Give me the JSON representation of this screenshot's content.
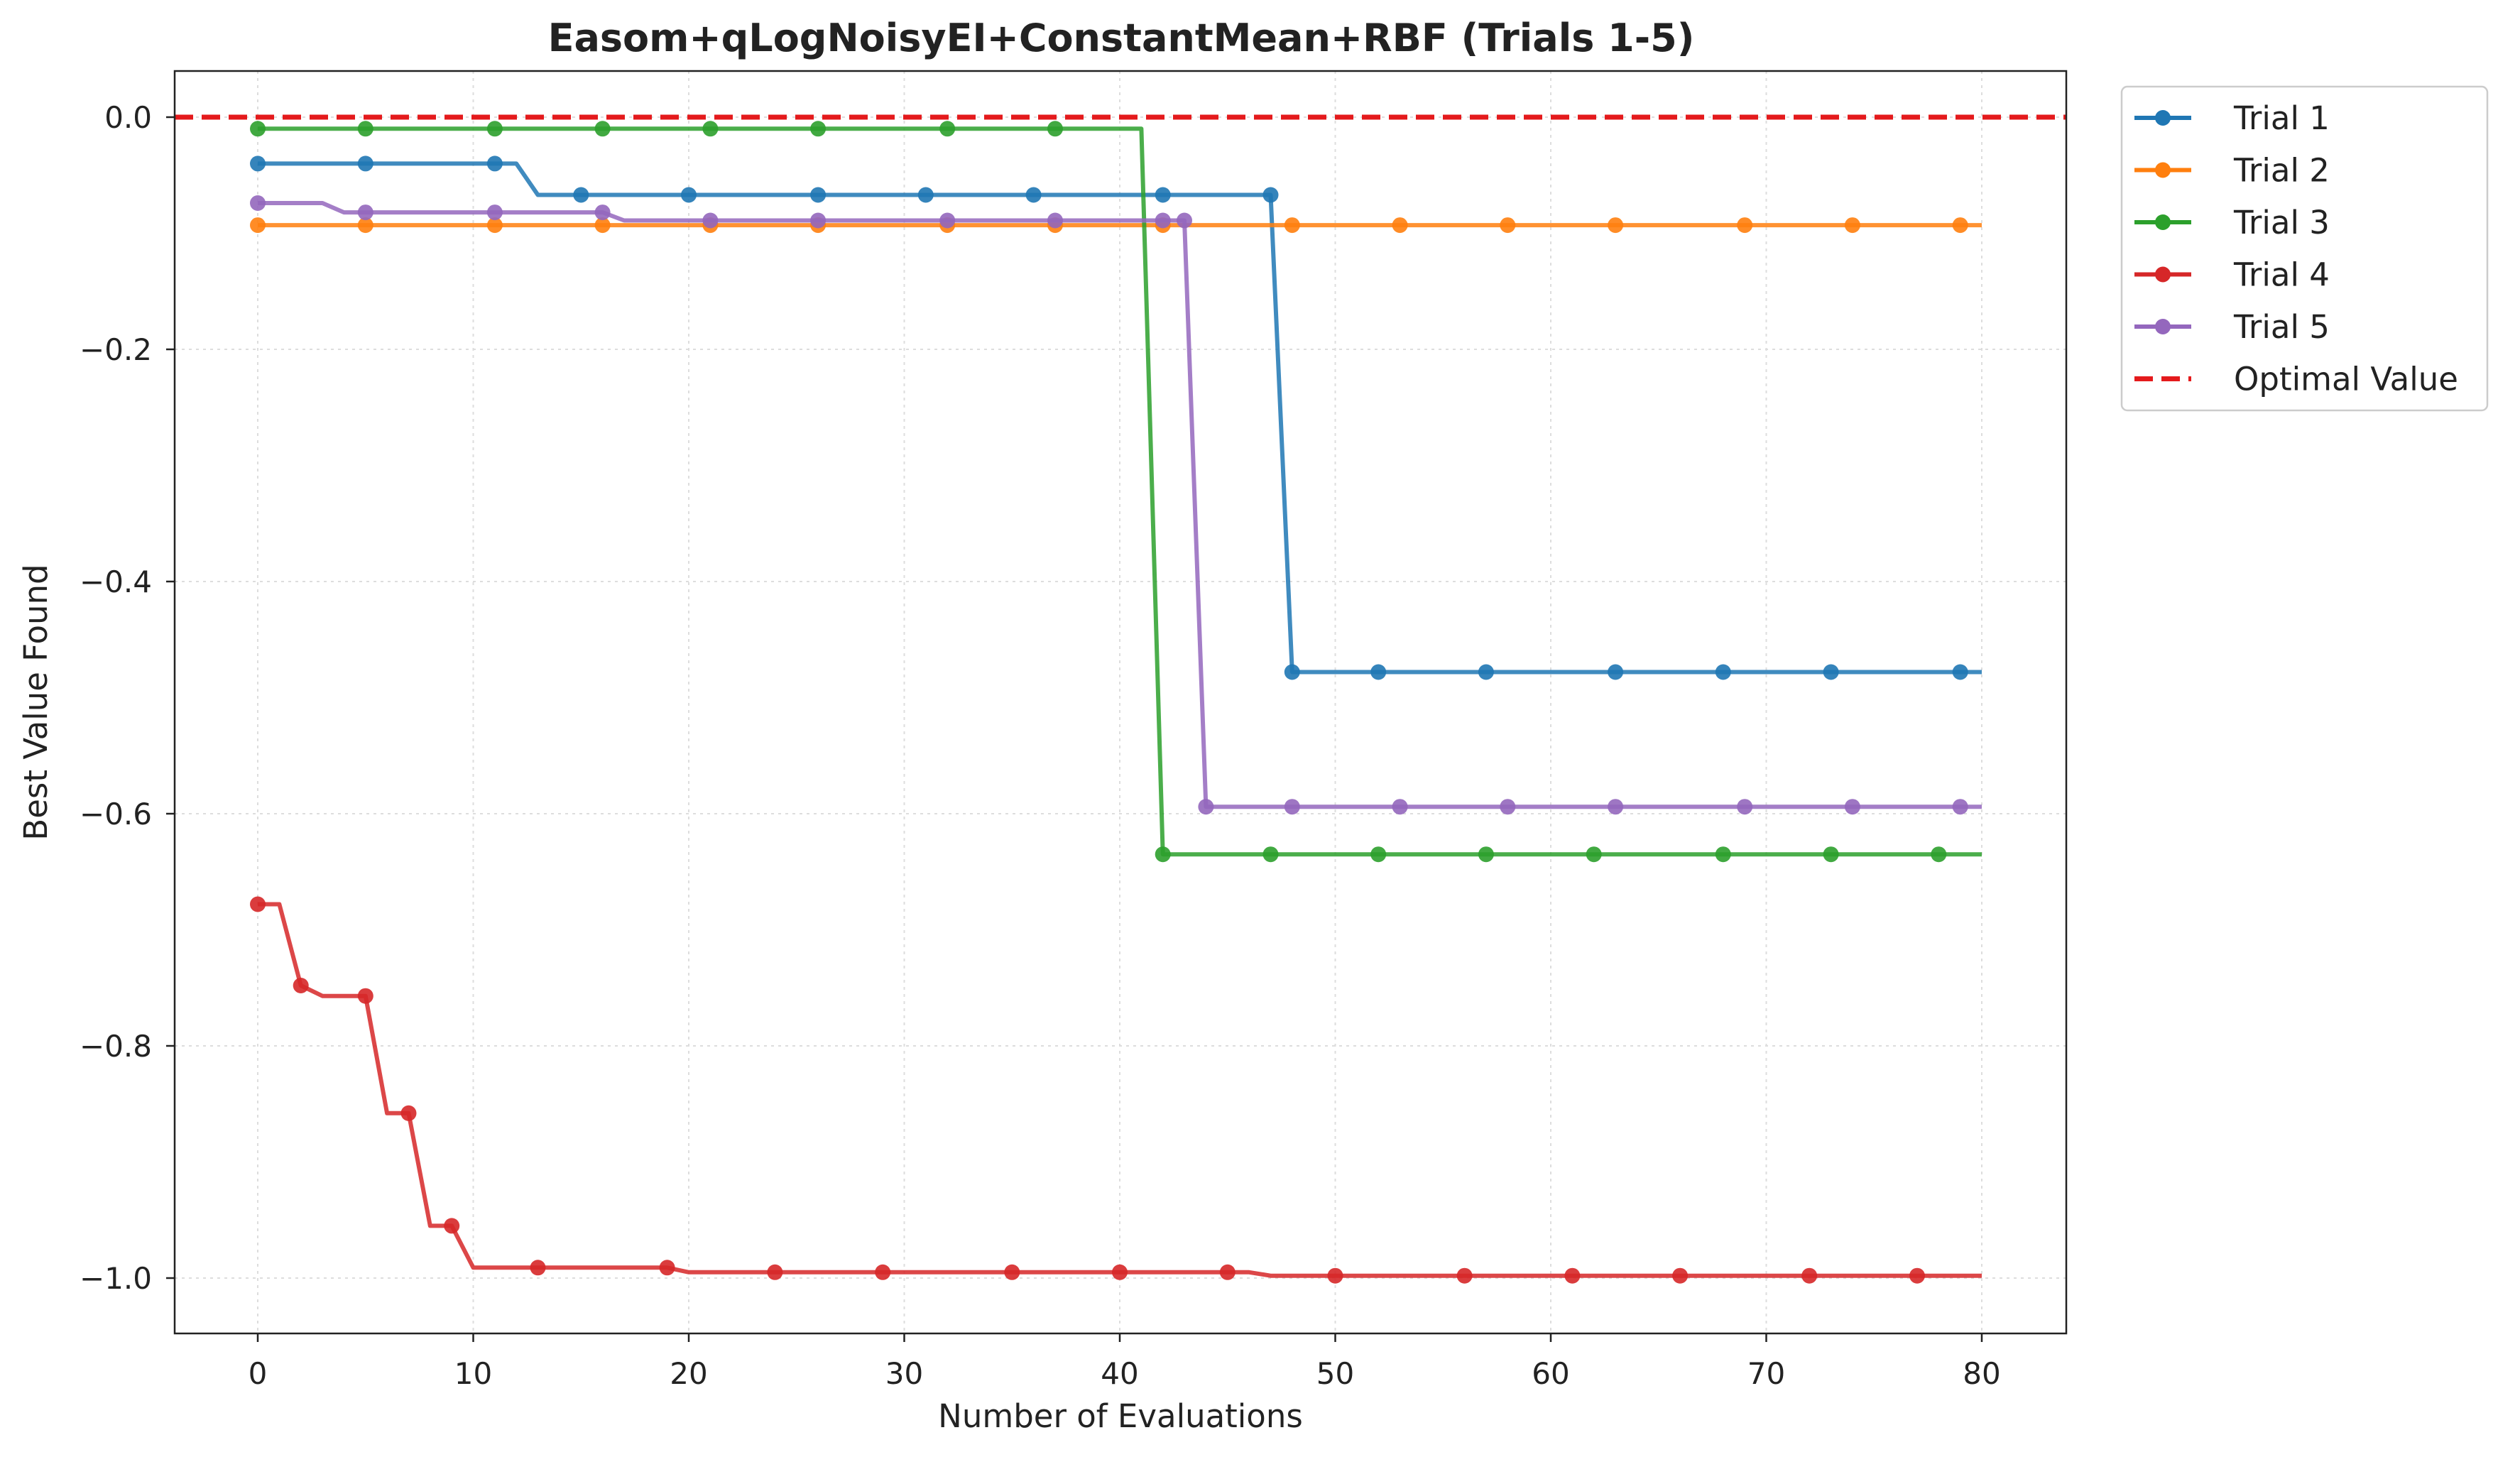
{
  "chart_data": {
    "type": "line",
    "title": "Easom+qLogNoisyEI+ConstantMean+RBF (Trials 1-5)",
    "xlabel": "Number of Evaluations",
    "ylabel": "Best Value Found",
    "xlim": [
      -4,
      84
    ],
    "ylim": [
      -1.05,
      0.04
    ],
    "xticks": [
      0,
      10,
      20,
      30,
      40,
      50,
      60,
      70,
      80
    ],
    "yticks": [
      0.0,
      -0.2,
      -0.4,
      -0.6,
      -0.8,
      -1.0
    ],
    "xtick_labels": [
      "0",
      "10",
      "20",
      "30",
      "40",
      "50",
      "60",
      "70",
      "80"
    ],
    "ytick_labels": [
      "0.0",
      "−0.2",
      "−0.4",
      "−0.6",
      "−0.8",
      "−1.0"
    ],
    "grid": true,
    "legend_position": "outside-top-right",
    "reference_line": {
      "name": "Optimal Value",
      "y": 0.0,
      "color": "#e41a1c",
      "style": "dashed"
    },
    "series": [
      {
        "name": "Trial 1",
        "color": "#1f77b4",
        "steps": [
          [
            0,
            -0.04
          ],
          [
            12,
            -0.04
          ],
          [
            13,
            -0.067
          ],
          [
            47,
            -0.067
          ],
          [
            48,
            -0.478
          ],
          [
            80,
            -0.478
          ]
        ],
        "markers": [
          0,
          5,
          11,
          15,
          20,
          26,
          31,
          36,
          42,
          47,
          48,
          52,
          57,
          63,
          68,
          73,
          79
        ]
      },
      {
        "name": "Trial 2",
        "color": "#ff7f0e",
        "steps": [
          [
            0,
            -0.093
          ],
          [
            80,
            -0.093
          ]
        ],
        "markers": [
          0,
          5,
          11,
          16,
          21,
          26,
          32,
          37,
          42,
          48,
          53,
          58,
          63,
          69,
          74,
          79
        ]
      },
      {
        "name": "Trial 3",
        "color": "#2ca02c",
        "steps": [
          [
            0,
            -0.01
          ],
          [
            41,
            -0.01
          ],
          [
            42,
            -0.635
          ],
          [
            80,
            -0.635
          ]
        ],
        "markers": [
          0,
          5,
          11,
          16,
          21,
          26,
          32,
          37,
          42,
          47,
          52,
          57,
          62,
          68,
          73,
          78
        ]
      },
      {
        "name": "Trial 4",
        "color": "#d62728",
        "steps": [
          [
            0,
            -0.678
          ],
          [
            1,
            -0.678
          ],
          [
            2,
            -0.748
          ],
          [
            3,
            -0.757
          ],
          [
            5,
            -0.757
          ],
          [
            6,
            -0.858
          ],
          [
            7,
            -0.858
          ],
          [
            8,
            -0.955
          ],
          [
            9,
            -0.955
          ],
          [
            10,
            -0.991
          ],
          [
            19,
            -0.991
          ],
          [
            20,
            -0.995
          ],
          [
            46,
            -0.995
          ],
          [
            47,
            -0.998
          ],
          [
            80,
            -0.998
          ]
        ],
        "markers": [
          0,
          2,
          5,
          7,
          9,
          13,
          19,
          24,
          29,
          35,
          40,
          45,
          50,
          56,
          61,
          66,
          72,
          77
        ]
      },
      {
        "name": "Trial 5",
        "color": "#9467bd",
        "steps": [
          [
            0,
            -0.074
          ],
          [
            3,
            -0.074
          ],
          [
            4,
            -0.082
          ],
          [
            16,
            -0.082
          ],
          [
            17,
            -0.089
          ],
          [
            43,
            -0.089
          ],
          [
            44,
            -0.594
          ],
          [
            80,
            -0.594
          ]
        ],
        "markers": [
          0,
          5,
          11,
          16,
          21,
          26,
          32,
          37,
          42,
          43,
          44,
          48,
          53,
          58,
          63,
          69,
          74,
          79
        ]
      }
    ]
  }
}
